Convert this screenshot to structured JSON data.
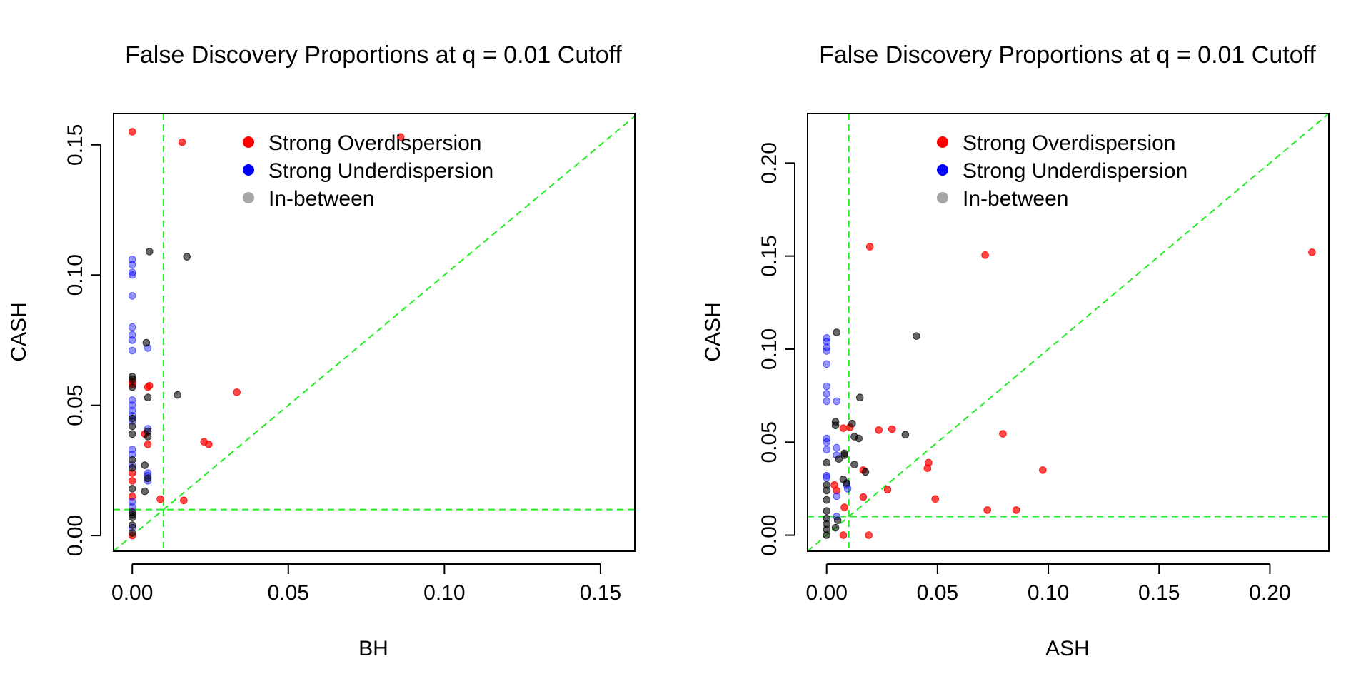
{
  "colors": {
    "overdispersion": "#ff0000",
    "underdispersion": "#0000ff",
    "in_between": "#000000",
    "legend_in_between": "#a6a6a6",
    "reference_lines": "#22ee22"
  },
  "chart_data": [
    {
      "type": "scatter",
      "title": "False Discovery Proportions at q = 0.01 Cutoff",
      "xlabel": "BH",
      "ylabel": "CASH",
      "xlim": [
        -0.006,
        0.161
      ],
      "ylim": [
        -0.006,
        0.162
      ],
      "xticks": [
        0.0,
        0.05,
        0.1,
        0.15
      ],
      "xtick_labels": [
        "0.00",
        "0.05",
        "0.10",
        "0.15"
      ],
      "yticks": [
        0.0,
        0.05,
        0.1,
        0.15
      ],
      "ytick_labels": [
        "0.00",
        "0.05",
        "0.10",
        "0.15"
      ],
      "reference_lines": {
        "vline": 0.01,
        "hline": 0.01,
        "diagonal": true
      },
      "legend": {
        "position": "top",
        "entries": [
          "Strong Overdispersion",
          "Strong Underdispersion",
          "In-between"
        ]
      },
      "series": [
        {
          "name": "Strong Overdispersion",
          "points": [
            [
              0.0,
              0.155
            ],
            [
              0.016,
              0.151
            ],
            [
              0.086,
              0.153
            ],
            [
              0.005,
              0.057
            ],
            [
              0.0055,
              0.0575
            ],
            [
              0.0335,
              0.055
            ],
            [
              0.004,
              0.039
            ],
            [
              0.005,
              0.035
            ],
            [
              0.023,
              0.036
            ],
            [
              0.0245,
              0.035
            ],
            [
              0.009,
              0.014
            ],
            [
              0.0165,
              0.0135
            ],
            [
              0.0,
              0.015
            ],
            [
              0.0,
              0.021
            ],
            [
              0.0,
              0.024
            ],
            [
              0.0,
              0.0
            ],
            [
              0.0,
              0.058
            ],
            [
              0.0,
              0.059
            ]
          ]
        },
        {
          "name": "Strong Underdispersion",
          "points": [
            [
              0.0,
              0.106
            ],
            [
              0.0,
              0.104
            ],
            [
              0.0,
              0.101
            ],
            [
              0.0,
              0.1
            ],
            [
              0.0,
              0.092
            ],
            [
              0.0,
              0.08
            ],
            [
              0.0,
              0.077
            ],
            [
              0.0,
              0.075
            ],
            [
              0.0,
              0.071
            ],
            [
              0.0,
              0.052
            ],
            [
              0.0,
              0.05
            ],
            [
              0.0,
              0.048
            ],
            [
              0.0,
              0.046
            ],
            [
              0.0,
              0.044
            ],
            [
              0.0,
              0.033
            ],
            [
              0.0,
              0.031
            ],
            [
              0.0,
              0.027
            ],
            [
              0.0,
              0.013
            ],
            [
              0.0,
              0.011
            ],
            [
              0.0,
              0.003
            ],
            [
              0.005,
              0.072
            ],
            [
              0.005,
              0.041
            ],
            [
              0.005,
              0.023
            ],
            [
              0.005,
              0.021
            ],
            [
              0.005,
              0.024
            ]
          ]
        },
        {
          "name": "In-between",
          "points": [
            [
              0.0055,
              0.109
            ],
            [
              0.0175,
              0.107
            ],
            [
              0.0045,
              0.074
            ],
            [
              0.0145,
              0.054
            ],
            [
              0.005,
              0.053
            ],
            [
              0.005,
              0.04
            ],
            [
              0.005,
              0.038
            ],
            [
              0.004,
              0.027
            ],
            [
              0.004,
              0.017
            ],
            [
              0.005,
              0.022
            ],
            [
              0.0,
              0.061
            ],
            [
              0.0,
              0.06
            ],
            [
              0.0,
              0.057
            ],
            [
              0.0,
              0.045
            ],
            [
              0.0,
              0.042
            ],
            [
              0.0,
              0.039
            ],
            [
              0.0,
              0.029
            ],
            [
              0.0,
              0.026
            ],
            [
              0.0,
              0.018
            ],
            [
              0.0,
              0.009
            ],
            [
              0.0,
              0.008
            ],
            [
              0.0,
              0.007
            ],
            [
              0.0,
              0.004
            ],
            [
              0.0,
              0.001
            ]
          ]
        }
      ]
    },
    {
      "type": "scatter",
      "title": "False Discovery Proportions at q = 0.01 Cutoff",
      "xlabel": "ASH",
      "ylabel": "CASH",
      "xlim": [
        -0.0086,
        0.2266
      ],
      "ylim": [
        -0.0086,
        0.2266
      ],
      "xticks": [
        0.0,
        0.05,
        0.1,
        0.15,
        0.2
      ],
      "xtick_labels": [
        "0.00",
        "0.05",
        "0.10",
        "0.15",
        "0.20"
      ],
      "yticks": [
        0.0,
        0.05,
        0.1,
        0.15,
        0.2
      ],
      "ytick_labels": [
        "0.00",
        "0.05",
        "0.10",
        "0.15",
        "0.20"
      ],
      "reference_lines": {
        "vline": 0.01,
        "hline": 0.01,
        "diagonal": true
      },
      "legend": {
        "position": "top",
        "entries": [
          "Strong Overdispersion",
          "Strong Underdispersion",
          "In-between"
        ]
      },
      "series": [
        {
          "name": "Strong Overdispersion",
          "points": [
            [
              0.0195,
              0.155
            ],
            [
              0.0715,
              0.1505
            ],
            [
              0.219,
              0.152
            ],
            [
              0.0235,
              0.0565
            ],
            [
              0.0295,
              0.057
            ],
            [
              0.0795,
              0.0545
            ],
            [
              0.0975,
              0.035
            ],
            [
              0.046,
              0.039
            ],
            [
              0.0455,
              0.036
            ],
            [
              0.0165,
              0.035
            ],
            [
              0.0275,
              0.0245
            ],
            [
              0.0165,
              0.0205
            ],
            [
              0.049,
              0.0195
            ],
            [
              0.0725,
              0.0135
            ],
            [
              0.0855,
              0.0135
            ],
            [
              0.0075,
              0.0575
            ],
            [
              0.0105,
              0.058
            ],
            [
              0.008,
              0.015
            ],
            [
              0.0075,
              0.0
            ],
            [
              0.019,
              0.0
            ],
            [
              0.0035,
              0.027
            ],
            [
              0.0045,
              0.024
            ]
          ]
        },
        {
          "name": "Strong Underdispersion",
          "points": [
            [
              0.0,
              0.106
            ],
            [
              0.0,
              0.104
            ],
            [
              0.0,
              0.101
            ],
            [
              0.0,
              0.099
            ],
            [
              0.0,
              0.092
            ],
            [
              0.0,
              0.08
            ],
            [
              0.0,
              0.076
            ],
            [
              0.0,
              0.072
            ],
            [
              0.0,
              0.052
            ],
            [
              0.0,
              0.05
            ],
            [
              0.0,
              0.046
            ],
            [
              0.0,
              0.032
            ],
            [
              0.0,
              0.031
            ],
            [
              0.0045,
              0.072
            ],
            [
              0.0045,
              0.047
            ],
            [
              0.0045,
              0.043
            ],
            [
              0.0045,
              0.021
            ],
            [
              0.0045,
              0.01
            ],
            [
              0.009,
              0.027
            ],
            [
              0.0095,
              0.025
            ]
          ]
        },
        {
          "name": "In-between",
          "points": [
            [
              0.0045,
              0.109
            ],
            [
              0.0405,
              0.107
            ],
            [
              0.015,
              0.074
            ],
            [
              0.004,
              0.061
            ],
            [
              0.004,
              0.059
            ],
            [
              0.0115,
              0.06
            ],
            [
              0.0125,
              0.053
            ],
            [
              0.0145,
              0.052
            ],
            [
              0.0355,
              0.054
            ],
            [
              0.008,
              0.044
            ],
            [
              0.0055,
              0.041
            ],
            [
              0.008,
              0.043
            ],
            [
              0.0125,
              0.038
            ],
            [
              0.0175,
              0.034
            ],
            [
              0.0075,
              0.03
            ],
            [
              0.009,
              0.028
            ],
            [
              0.0,
              0.039
            ],
            [
              0.0,
              0.027
            ],
            [
              0.0,
              0.024
            ],
            [
              0.0,
              0.019
            ],
            [
              0.0,
              0.013
            ],
            [
              0.0,
              0.009
            ],
            [
              0.0,
              0.006
            ],
            [
              0.0,
              0.003
            ],
            [
              0.0,
              0.0
            ],
            [
              0.004,
              0.004
            ],
            [
              0.005,
              0.008
            ]
          ]
        }
      ]
    }
  ]
}
